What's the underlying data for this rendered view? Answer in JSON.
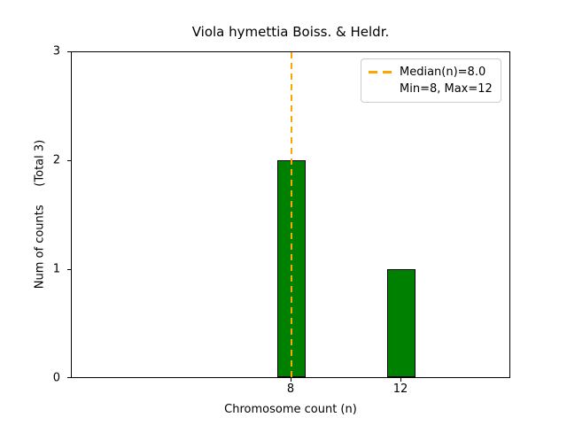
{
  "chart_data": {
    "type": "bar",
    "title": "Viola hymettia Boiss. & Heldr.",
    "xlabel": "Chromosome count (n)",
    "ylabel": "Num of counts     (Total 3)",
    "categories": [
      8,
      12
    ],
    "values": [
      2,
      1
    ],
    "total_counts": 3,
    "xticks": [
      "8",
      "12"
    ],
    "yticks": [
      "0",
      "1",
      "2",
      "3"
    ],
    "xlim": [
      0,
      16
    ],
    "ylim": [
      0,
      3
    ],
    "grid": false,
    "legend_position": "upper right",
    "legend": [
      {
        "label": "Median(n)=8.0",
        "marker": "orange-dashed-line"
      },
      {
        "label": "Min=8, Max=12",
        "marker": "none"
      }
    ],
    "annotations": [
      {
        "type": "vline",
        "x": 8.0,
        "style": "dashed",
        "color": "#FFA500",
        "meaning": "median"
      }
    ],
    "colors": {
      "bar_fill": "#008000",
      "bar_edge": "#000000",
      "median_line": "#FFA500",
      "background": "#FFFFFF",
      "text": "#000000",
      "legend_border": "#CCCCCC"
    }
  }
}
